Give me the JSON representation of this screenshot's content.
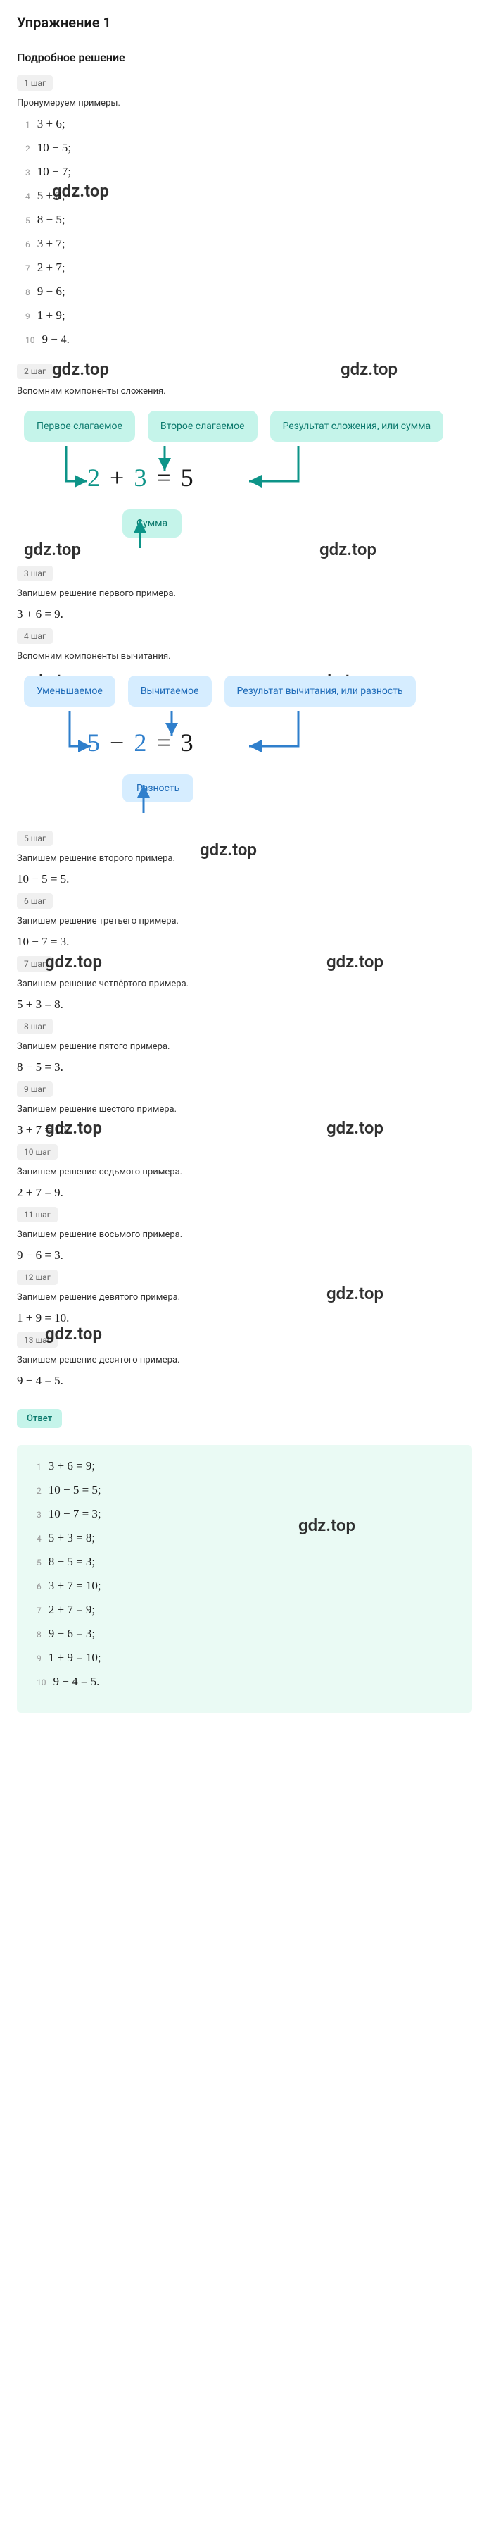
{
  "title": "Упражнение 1",
  "subtitle": "Подробное решение",
  "watermark": "gdz.top",
  "steps": {
    "s1": {
      "badge": "1 шаг",
      "text": "Пронумеруем примеры."
    },
    "s2": {
      "badge": "2 шаг",
      "text": "Вспомним компоненты сложения."
    },
    "s3": {
      "badge": "3 шаг",
      "text": "Запишем решение первого примера.",
      "eq": "3 + 6 = 9."
    },
    "s4": {
      "badge": "4 шаг",
      "text": "Вспомним компоненты вычитания."
    },
    "s5": {
      "badge": "5 шаг",
      "text": "Запишем решение второго примера.",
      "eq": "10 − 5 = 5."
    },
    "s6": {
      "badge": "6 шаг",
      "text": "Запишем решение третьего примера.",
      "eq": "10 − 7 = 3."
    },
    "s7": {
      "badge": "7 шаг",
      "text": "Запишем решение четвёртого примера.",
      "eq": "5 + 3 = 8."
    },
    "s8": {
      "badge": "8 шаг",
      "text": "Запишем решение пятого примера.",
      "eq": "8 − 5 = 3."
    },
    "s9": {
      "badge": "9 шаг",
      "text": "Запишем решение шестого примера.",
      "eq": "3 + 7 = 10."
    },
    "s10": {
      "badge": "10 шаг",
      "text": "Запишем решение седьмого примера.",
      "eq": "2 + 7 = 9."
    },
    "s11": {
      "badge": "11 шаг",
      "text": "Запишем решение восьмого примера.",
      "eq": "9 − 6 = 3."
    },
    "s12": {
      "badge": "12 шаг",
      "text": "Запишем решение девятого примера.",
      "eq": "1 + 9 = 10."
    },
    "s13": {
      "badge": "13 шаг",
      "text": "Запишем решение десятого примера.",
      "eq": "9 − 4 = 5."
    }
  },
  "problems": [
    {
      "idx": "1",
      "expr": "3 + 6;"
    },
    {
      "idx": "2",
      "expr": "10 − 5;"
    },
    {
      "idx": "3",
      "expr": "10 − 7;"
    },
    {
      "idx": "4",
      "expr": "5 + 3;"
    },
    {
      "idx": "5",
      "expr": "8 − 5;"
    },
    {
      "idx": "6",
      "expr": "3 + 7;"
    },
    {
      "idx": "7",
      "expr": "2 + 7;"
    },
    {
      "idx": "8",
      "expr": "9 − 6;"
    },
    {
      "idx": "9",
      "expr": "1 + 9;"
    },
    {
      "idx": "10",
      "expr": "9 − 4."
    }
  ],
  "diagram_add": {
    "chip1": "Первое слагаемое",
    "chip2": "Второе слагаемое",
    "chip3": "Результат сложения, или сумма",
    "n1": "2",
    "op": "+",
    "n2": "3",
    "eq": "=",
    "res": "5",
    "bottom_chip": "Сумма",
    "chip_bg": "#c5f4ea",
    "chip_color": "#0d7a6e",
    "arrow_color": "#0d9488"
  },
  "diagram_sub": {
    "chip1": "Уменьшаемое",
    "chip2": "Вычитаемое",
    "chip3": "Результат вычитания, или разность",
    "n1": "5",
    "op": "−",
    "n2": "2",
    "eq": "=",
    "res": "3",
    "bottom_chip": "Разность",
    "chip_bg": "#d6edff",
    "chip_color": "#1e6bb8",
    "arrow_color": "#2f7fcc"
  },
  "answer_label": "Ответ",
  "answers": [
    {
      "idx": "1",
      "expr": "3 + 6 = 9;"
    },
    {
      "idx": "2",
      "expr": "10 − 5 = 5;"
    },
    {
      "idx": "3",
      "expr": "10 − 7 = 3;"
    },
    {
      "idx": "4",
      "expr": "5 + 3 = 8;"
    },
    {
      "idx": "5",
      "expr": "8 − 5 = 3;"
    },
    {
      "idx": "6",
      "expr": "3 + 7 = 10;"
    },
    {
      "idx": "7",
      "expr": "2 + 7 = 9;"
    },
    {
      "idx": "8",
      "expr": "9 − 6 = 3;"
    },
    {
      "idx": "9",
      "expr": "1 + 9 = 10;"
    },
    {
      "idx": "10",
      "expr": "9 − 4 = 5."
    }
  ]
}
